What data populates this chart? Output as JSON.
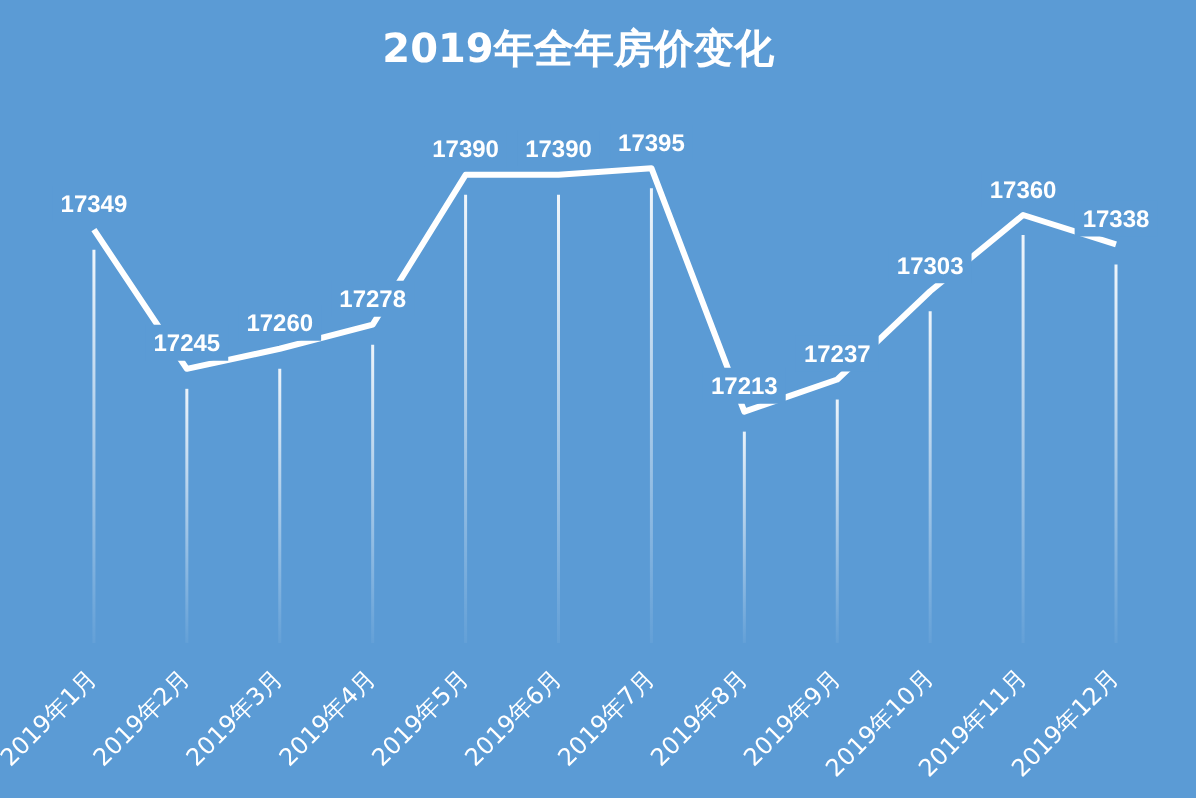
{
  "chart_data": {
    "type": "line",
    "title": "2019年全年房价变化",
    "categories": [
      "2019年1月",
      "2019年2月",
      "2019年3月",
      "2019年4月",
      "2019年5月",
      "2019年6月",
      "2019年7月",
      "2019年8月",
      "2019年9月",
      "2019年10月",
      "2019年11月",
      "2019年12月"
    ],
    "series": [
      {
        "color": "#ffffff",
        "values": [
          17349,
          17245,
          17260,
          17278,
          17390,
          17390,
          17395,
          17213,
          17237,
          17303,
          17360,
          17338
        ]
      }
    ],
    "data_labels": true,
    "grid": "x",
    "legend": false,
    "marker": "none",
    "line_style": "solid"
  }
}
